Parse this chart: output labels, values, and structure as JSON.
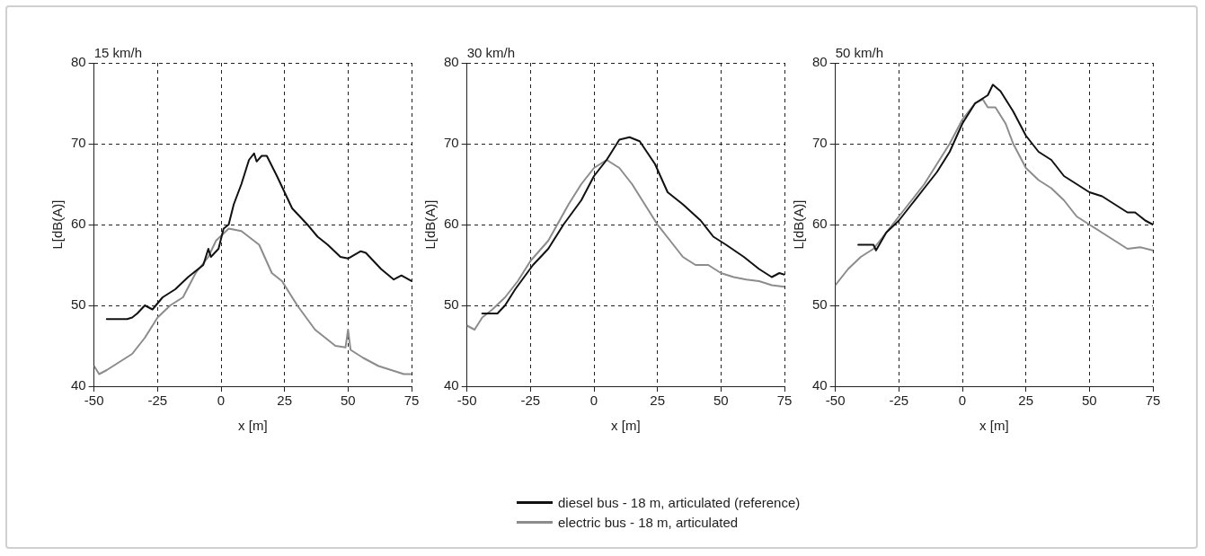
{
  "chart_data": [
    {
      "type": "line",
      "title": "15 km/h",
      "xlabel": "x [m]",
      "ylabel": "L[dB(A)]",
      "xlim": [
        -50,
        75
      ],
      "xticks": [
        -50,
        -25,
        0,
        25,
        50,
        75
      ],
      "ylim": [
        40,
        80
      ],
      "yticks": [
        40,
        50,
        60,
        70,
        80
      ],
      "grid": true,
      "line_style": "solid",
      "marker": "none",
      "series": [
        {
          "color": "#111111",
          "x": [
            -45,
            -37,
            -35,
            -33,
            -30,
            -27,
            -23,
            -18,
            -13,
            -7,
            -5,
            -4,
            -1,
            1,
            3,
            5,
            8,
            11,
            13,
            14,
            16,
            18,
            22,
            28,
            34,
            38,
            42,
            47,
            50,
            55,
            57,
            63,
            68,
            71,
            75
          ],
          "values": [
            48.3,
            48.3,
            48.5,
            49,
            50,
            49.5,
            51,
            52,
            53.5,
            55,
            57,
            56,
            57,
            59.5,
            60,
            62.5,
            65,
            68,
            68.8,
            67.8,
            68.5,
            68.5,
            66,
            62,
            60,
            58.5,
            57.5,
            56,
            55.8,
            56.7,
            56.5,
            54.5,
            53.2,
            53.7,
            53
          ]
        },
        {
          "color": "#8c8c8c",
          "x": [
            -50,
            -48,
            -45,
            -40,
            -35,
            -30,
            -25,
            -20,
            -15,
            -10,
            -5,
            -2,
            3,
            8,
            15,
            20,
            24,
            25,
            30,
            37,
            45,
            49,
            50,
            51,
            56,
            62,
            67,
            72,
            75
          ],
          "values": [
            42.5,
            41.5,
            42,
            43,
            44,
            46,
            48.5,
            50,
            51,
            54,
            56,
            58,
            59.5,
            59.2,
            57.5,
            54,
            53,
            52.5,
            50,
            47,
            45,
            44.8,
            47,
            44.5,
            43.5,
            42.5,
            42,
            41.5,
            41.5
          ]
        }
      ]
    },
    {
      "type": "line",
      "title": "30 km/h",
      "xlabel": "x [m]",
      "ylabel": "L[dB(A)]",
      "xlim": [
        -50,
        75
      ],
      "xticks": [
        -50,
        -25,
        0,
        25,
        50,
        75
      ],
      "ylim": [
        40,
        80
      ],
      "yticks": [
        40,
        50,
        60,
        70,
        80
      ],
      "grid": true,
      "line_style": "solid",
      "marker": "none",
      "legend": "bottom",
      "series": [
        {
          "name": "diesel bus - 18 m, articulated (reference)",
          "color": "#111111",
          "x": [
            -44,
            -38,
            -35,
            -31,
            -24,
            -18,
            -12,
            -5,
            0,
            5,
            10,
            14,
            18,
            24,
            29,
            35,
            42,
            47,
            52,
            59,
            65,
            70,
            73,
            75
          ],
          "values": [
            49,
            49,
            50,
            52,
            55,
            57,
            60,
            63,
            66,
            68,
            70.5,
            70.8,
            70.3,
            67.5,
            64,
            62.5,
            60.5,
            58.5,
            57.5,
            56,
            54.5,
            53.5,
            54,
            53.8
          ]
        },
        {
          "name": "electric bus - 18 m, articulated",
          "color": "#8c8c8c",
          "x": [
            -50,
            -47,
            -44,
            -40,
            -35,
            -30,
            -25,
            -18,
            -10,
            -5,
            0,
            5,
            10,
            15,
            20,
            25,
            30,
            35,
            40,
            45,
            50,
            55,
            60,
            65,
            70,
            75
          ],
          "values": [
            47.5,
            47,
            48.5,
            49.5,
            51,
            53,
            55.5,
            58,
            62.5,
            65,
            67,
            68,
            67,
            65,
            62.5,
            60,
            58,
            56,
            55,
            55,
            54,
            53.5,
            53.2,
            53,
            52.5,
            52.3
          ]
        }
      ]
    },
    {
      "type": "line",
      "title": "50 km/h",
      "xlabel": "x [m]",
      "ylabel": "L[dB(A)]",
      "xlim": [
        -50,
        75
      ],
      "xticks": [
        -50,
        -25,
        0,
        25,
        50,
        75
      ],
      "ylim": [
        40,
        80
      ],
      "yticks": [
        40,
        50,
        60,
        70,
        80
      ],
      "grid": true,
      "line_style": "solid",
      "marker": "none",
      "series": [
        {
          "color": "#111111",
          "x": [
            -41,
            -35,
            -34,
            -30,
            -25,
            -20,
            -15,
            -10,
            -5,
            0,
            5,
            10,
            12,
            15,
            20,
            25,
            30,
            35,
            40,
            45,
            50,
            55,
            60,
            65,
            68,
            72,
            75
          ],
          "values": [
            57.5,
            57.5,
            56.8,
            59,
            60.5,
            62.5,
            64.5,
            66.5,
            69,
            72.5,
            75,
            76,
            77.3,
            76.5,
            74,
            71,
            69,
            68,
            66,
            65,
            64,
            63.5,
            62.5,
            61.5,
            61.5,
            60.5,
            60
          ]
        },
        {
          "color": "#8c8c8c",
          "x": [
            -50,
            -45,
            -40,
            -35,
            -30,
            -25,
            -20,
            -15,
            -10,
            -5,
            0,
            5,
            8,
            10,
            13,
            17,
            20,
            25,
            30,
            35,
            40,
            45,
            50,
            55,
            60,
            65,
            70,
            75
          ],
          "values": [
            52.5,
            54.5,
            56,
            57,
            59,
            61,
            63,
            65,
            67.5,
            70,
            73,
            75,
            75.5,
            74.5,
            74.5,
            72.5,
            70,
            67,
            65.5,
            64.5,
            63,
            61,
            60,
            59,
            58,
            57,
            57.2,
            56.8
          ]
        }
      ]
    }
  ]
}
